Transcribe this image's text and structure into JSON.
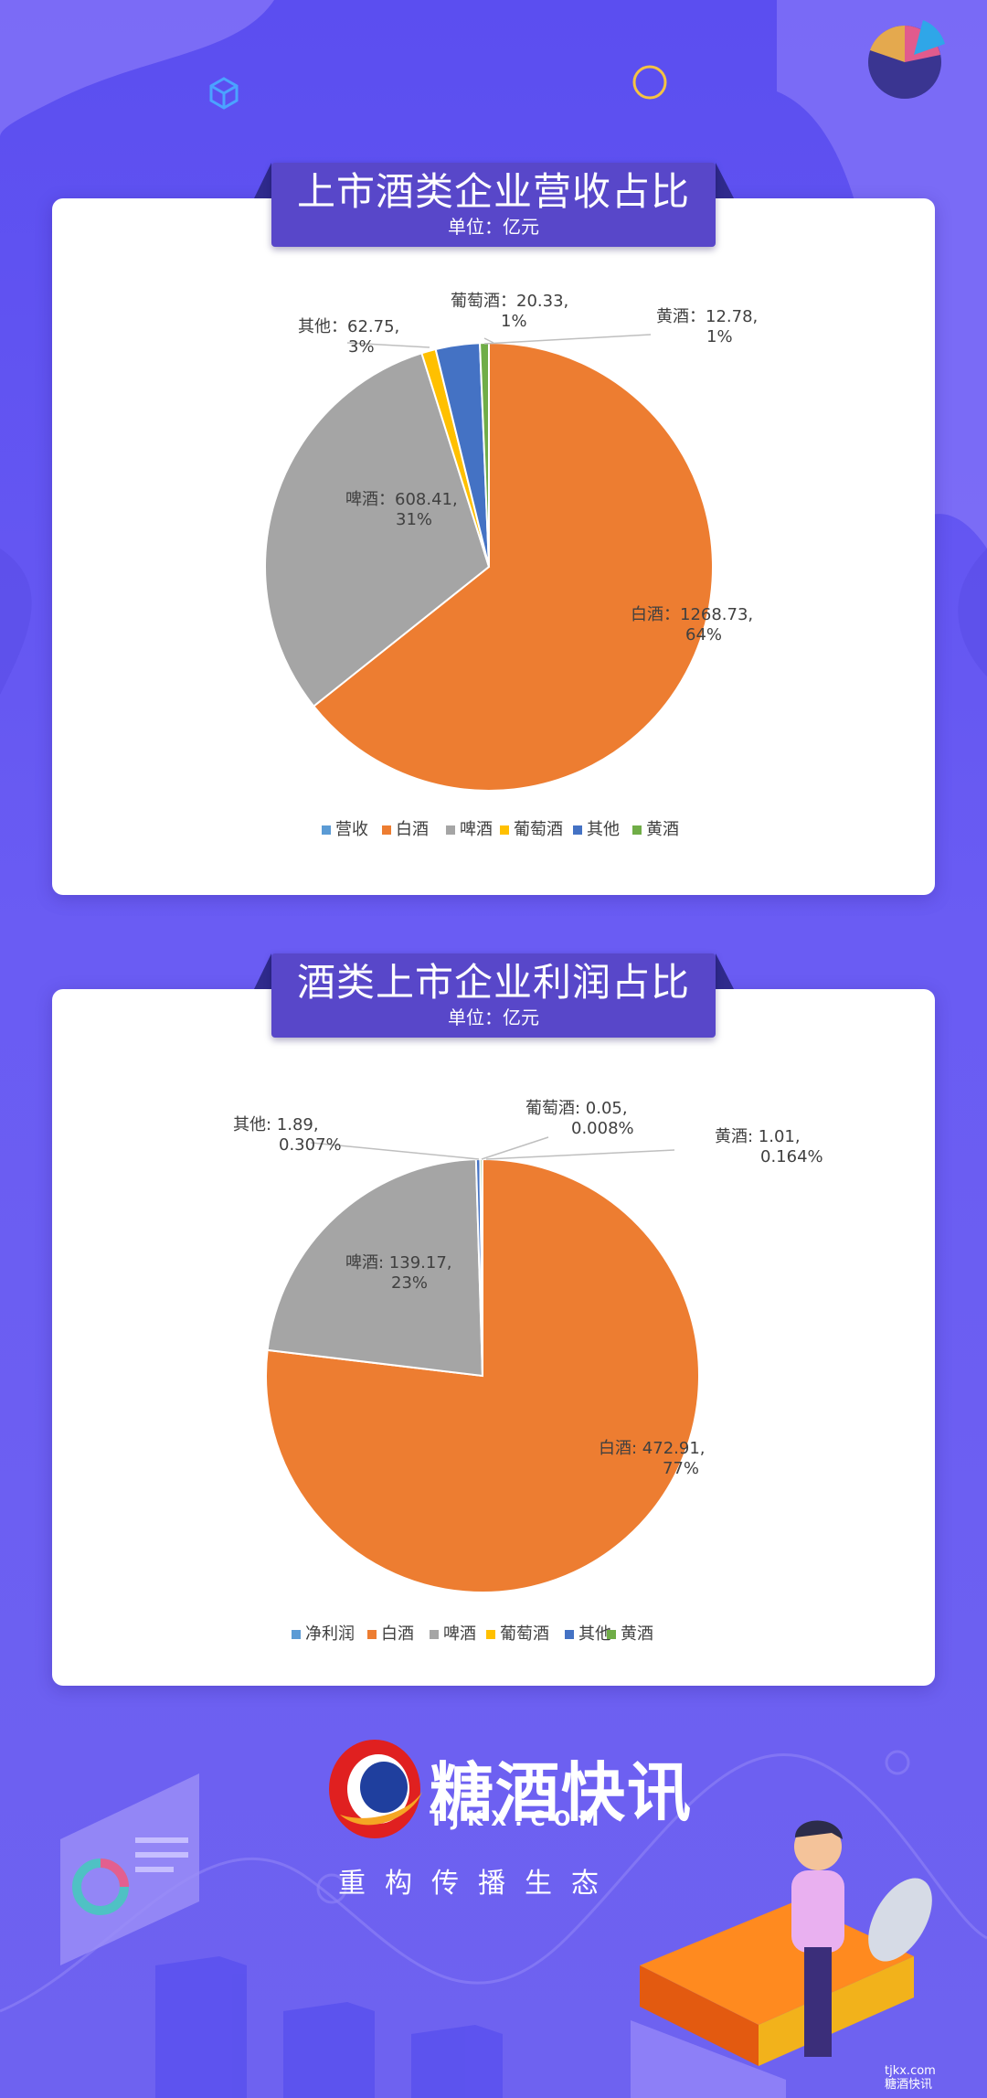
{
  "colors": {
    "bg_top": "#5b4ef0",
    "bg": "#6a5cf3",
    "banner": "#5847c9",
    "slices": [
      "#5b9bd5",
      "#ed7d31",
      "#a5a5a5",
      "#ffc000",
      "#4472c4",
      "#70ad47"
    ]
  },
  "chart_data": [
    {
      "type": "pie",
      "title": "上市酒类企业营收占比",
      "subtitle": "单位：亿元",
      "legend_position": "bottom",
      "legend": [
        "营收",
        "白酒",
        "啤酒",
        "葡萄酒",
        "其他",
        "黄酒"
      ],
      "slices": [
        {
          "name": "白酒",
          "value": 1268.73,
          "label_line1": "白酒：1268.73,",
          "label_line2": "64%"
        },
        {
          "name": "啤酒",
          "value": 608.41,
          "label_line1": "啤酒：608.41,",
          "label_line2": "31%"
        },
        {
          "name": "葡萄酒",
          "value": 20.33,
          "label_line1": "葡萄酒：20.33,",
          "label_line2": "1%"
        },
        {
          "name": "其他",
          "value": 62.75,
          "label_line1": "其他：62.75,",
          "label_line2": "3%"
        },
        {
          "name": "黄酒",
          "value": 12.78,
          "label_line1": "黄酒：12.78,",
          "label_line2": "1%"
        }
      ]
    },
    {
      "type": "pie",
      "title": "酒类上市企业利润占比",
      "subtitle": "单位：亿元",
      "legend_position": "bottom",
      "legend": [
        "净利润",
        "白酒",
        "啤酒",
        "葡萄酒",
        "其他",
        "黄酒"
      ],
      "slices": [
        {
          "name": "白酒",
          "value": 472.91,
          "label_line1": "白酒: 472.91,",
          "label_line2": "77%"
        },
        {
          "name": "啤酒",
          "value": 139.17,
          "label_line1": "啤酒: 139.17,",
          "label_line2": "23%"
        },
        {
          "name": "葡萄酒",
          "value": 0.05,
          "label_line1": "葡萄酒: 0.05,",
          "label_line2": "0.008%"
        },
        {
          "name": "其他",
          "value": 1.89,
          "label_line1": "其他: 1.89,",
          "label_line2": "0.307%"
        },
        {
          "name": "黄酒",
          "value": 1.01,
          "label_line1": "黄酒: 1.01,",
          "label_line2": "0.164%"
        }
      ]
    }
  ],
  "footer": {
    "brand": "糖酒快讯",
    "domain": "TJKX.COM",
    "slogan": "重构传播生态",
    "corner_line1": "tjkx.com",
    "corner_line2": "糖酒快讯"
  }
}
